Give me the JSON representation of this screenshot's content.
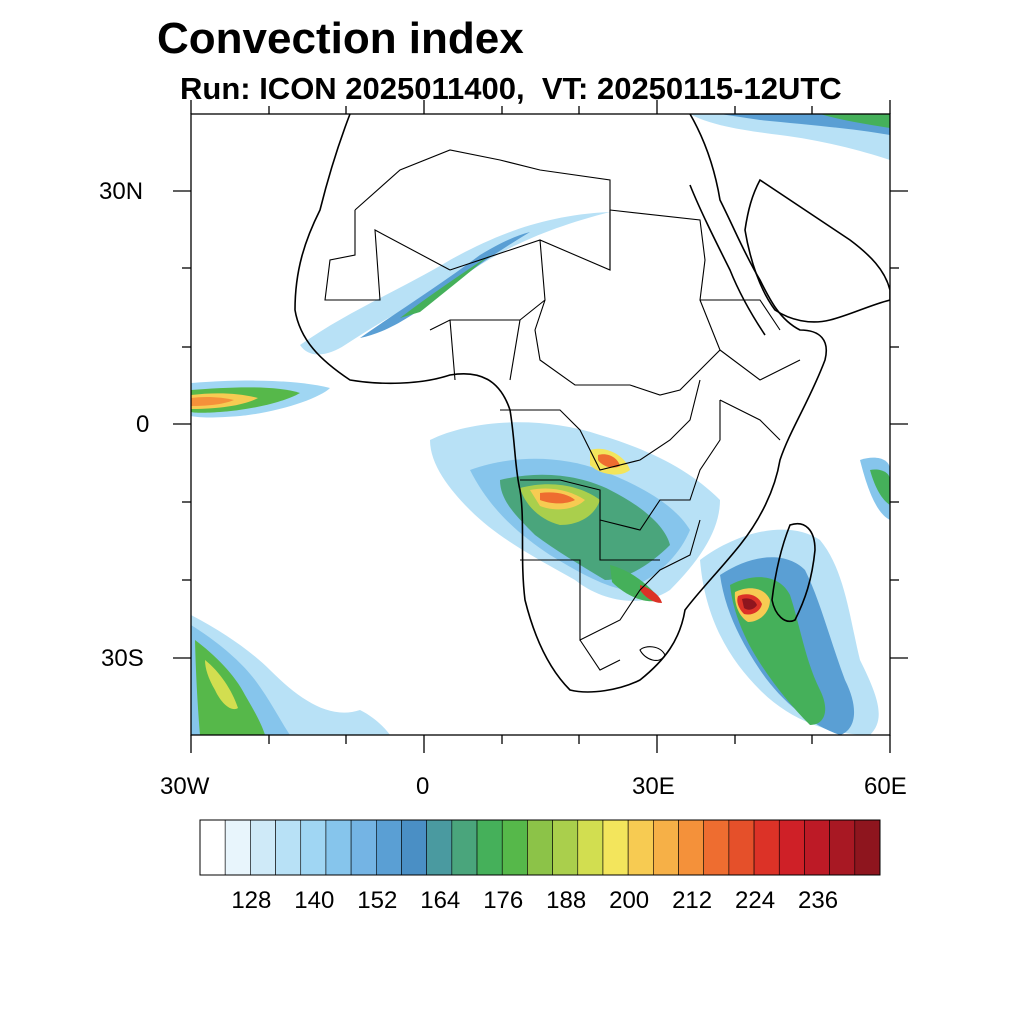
{
  "title": "Convection index",
  "subtitle": "Run: ICON 2025011400,  VT: 20250115-12UTC",
  "lat_labels": [
    "30N",
    "0",
    "30S"
  ],
  "lon_labels": [
    "30W",
    "0",
    "30E",
    "60E"
  ],
  "map": {
    "variable": "convection index",
    "lon_range": [
      -30,
      60
    ],
    "lat_range": [
      -40,
      40
    ],
    "regions_of_high_values": [
      "Mozambique Channel / Madagascar",
      "Angola / Zambia",
      "Congo basin",
      "Atlantic ITCZ near equator",
      "South Atlantic frontal band"
    ]
  },
  "colorbar": {
    "tick_labels": [
      "128",
      "140",
      "152",
      "164",
      "176",
      "188",
      "200",
      "212",
      "224",
      "236"
    ],
    "colors": [
      "#ffffff",
      "#e8f5fc",
      "#cfeaf8",
      "#b8e1f6",
      "#a0d6f3",
      "#86c5ec",
      "#74b4e4",
      "#5a9fd4",
      "#4a8fc5",
      "#4a9aa0",
      "#4aa57c",
      "#45b05a",
      "#56b84a",
      "#8cc348",
      "#aacf4c",
      "#d2de50",
      "#f3e55c",
      "#f7cb52",
      "#f6b047",
      "#f4913a",
      "#ee6d30",
      "#e5502a",
      "#dc3227",
      "#cf2027",
      "#bd1a26",
      "#a81823",
      "#8e151e"
    ]
  },
  "colors": {
    "border": "#000000",
    "background": "#ffffff"
  }
}
